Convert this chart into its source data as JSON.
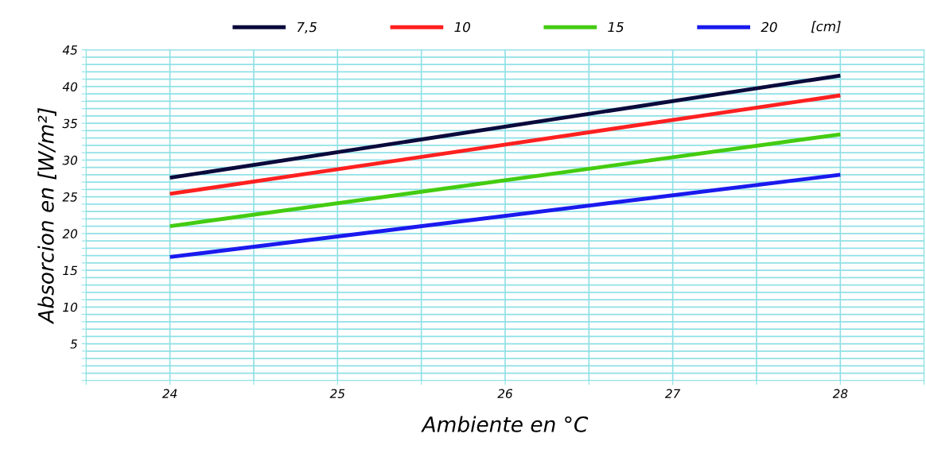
{
  "chart_data": {
    "type": "line",
    "xlabel": "Ambiente en °C",
    "ylabel": "Absorcion en [W/m²]",
    "legend_title": "[cm]",
    "legend": "top",
    "x": [
      24,
      28
    ],
    "series": [
      {
        "name": "7,5",
        "color": "#0a0a3c",
        "values": [
          27.6,
          41.5
        ]
      },
      {
        "name": "10",
        "color": "#ff2020",
        "values": [
          25.4,
          38.8
        ]
      },
      {
        "name": "15",
        "color": "#44cc11",
        "values": [
          21.0,
          33.5
        ]
      },
      {
        "name": "20",
        "color": "#1a1aee",
        "values": [
          16.8,
          28.0
        ]
      }
    ],
    "xlim": [
      23.5,
      28.5
    ],
    "xticks": [
      {
        "value": 23.5,
        "label": null
      },
      24,
      {
        "value": 24.5,
        "label": null
      },
      25,
      {
        "value": 25.5,
        "label": null
      },
      26,
      {
        "value": 26.5,
        "label": null
      },
      27,
      {
        "value": 27.5,
        "label": null
      },
      28,
      {
        "value": 28.5,
        "label": null
      }
    ],
    "ylim": [
      0,
      45
    ],
    "yticks": [
      {
        "value": 0,
        "label": null
      },
      {
        "value": 1,
        "label": null
      },
      {
        "value": 2,
        "label": null
      },
      {
        "value": 3,
        "label": null
      },
      {
        "value": 4,
        "label": null
      },
      5,
      {
        "value": 6,
        "label": null
      },
      {
        "value": 7,
        "label": null
      },
      {
        "value": 8,
        "label": null
      },
      {
        "value": 9,
        "label": null
      },
      10,
      {
        "value": 11,
        "label": null
      },
      {
        "value": 12,
        "label": null
      },
      {
        "value": 13,
        "label": null
      },
      {
        "value": 14,
        "label": null
      },
      15,
      {
        "value": 16,
        "label": null
      },
      {
        "value": 17,
        "label": null
      },
      {
        "value": 18,
        "label": null
      },
      {
        "value": 19,
        "label": null
      },
      20,
      {
        "value": 21,
        "label": null
      },
      {
        "value": 22,
        "label": null
      },
      {
        "value": 23,
        "label": null
      },
      {
        "value": 24,
        "label": null
      },
      25,
      {
        "value": 26,
        "label": null
      },
      {
        "value": 27,
        "label": null
      },
      {
        "value": 28,
        "label": null
      },
      {
        "value": 29,
        "label": null
      },
      30,
      {
        "value": 31,
        "label": null
      },
      {
        "value": 32,
        "label": null
      },
      {
        "value": 33,
        "label": null
      },
      {
        "value": 34,
        "label": null
      },
      35,
      {
        "value": 36,
        "label": null
      },
      {
        "value": 37,
        "label": null
      },
      {
        "value": 38,
        "label": null
      },
      {
        "value": 39,
        "label": null
      },
      40,
      {
        "value": 41,
        "label": null
      },
      {
        "value": 42,
        "label": null
      },
      {
        "value": 43,
        "label": null
      },
      {
        "value": 44,
        "label": null
      },
      45
    ],
    "grid": true,
    "marker": "none",
    "line_style": "solid"
  }
}
